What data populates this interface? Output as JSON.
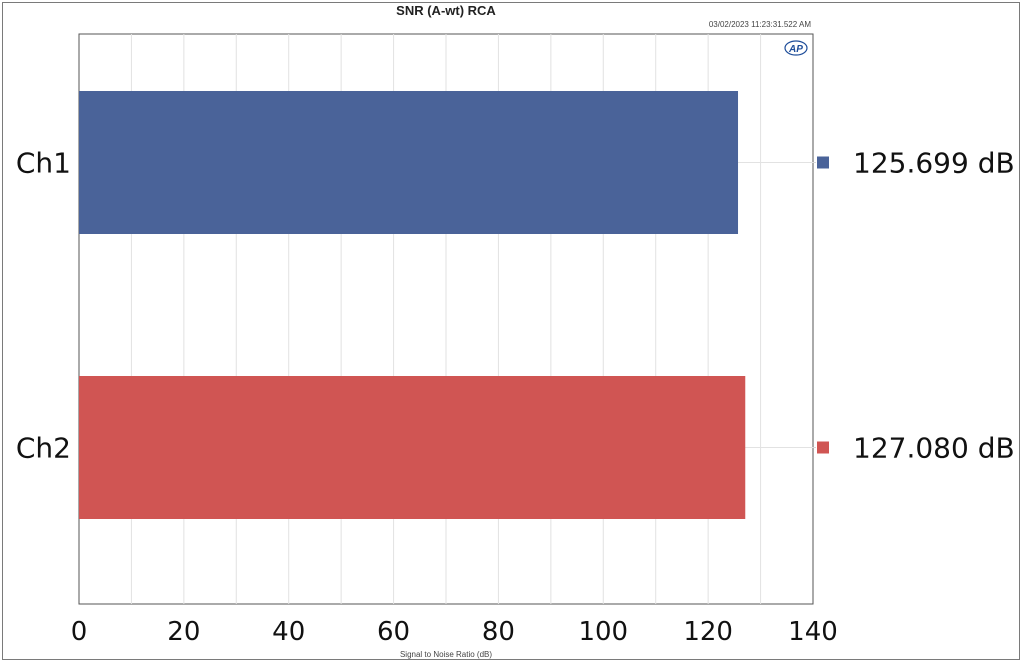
{
  "chart_data": {
    "type": "bar",
    "orientation": "horizontal",
    "title": "SNR (A-wt) RCA",
    "timestamp": "03/02/2023 11:23:31.522 AM",
    "logo": "AP",
    "xlabel": "Signal to Noise Ratio (dB)",
    "ylabel": "",
    "xlim": [
      0,
      140
    ],
    "x_ticks": [
      0,
      20,
      40,
      60,
      80,
      100,
      120,
      140
    ],
    "grid": true,
    "categories": [
      "Ch1",
      "Ch2"
    ],
    "values": [
      125.699,
      127.08
    ],
    "value_labels": [
      "125.699  dB",
      "127.080  dB"
    ],
    "colors": [
      "#4a6399",
      "#d05553"
    ],
    "legend": "right"
  }
}
